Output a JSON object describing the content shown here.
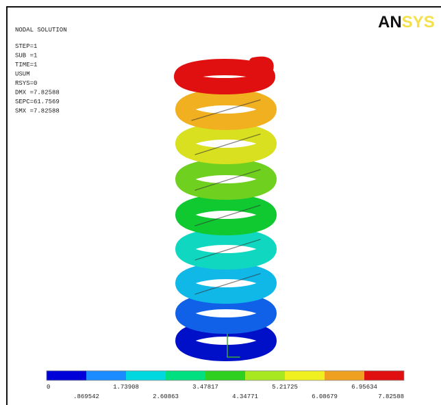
{
  "header": {
    "title": "NODAL SOLUTION",
    "lines": [
      "STEP=1",
      "SUB =1",
      "TIME=1",
      "USUM",
      "RSYS=0",
      "DMX =7.82588",
      "SEPC=61.7569",
      "SMX =7.82588"
    ]
  },
  "logo": [
    "AN",
    "SYS"
  ],
  "legend": {
    "colors": [
      "#0000d8",
      "#1a8cff",
      "#00d8e0",
      "#00e080",
      "#30d020",
      "#a8e820",
      "#f0f020",
      "#f0a020",
      "#e01010"
    ],
    "labels": [
      "0",
      ".869542",
      "1.73908",
      "2.60863",
      "3.47817",
      "4.34771",
      "5.21725",
      "6.08679",
      "6.95634",
      "7.82588"
    ]
  }
}
